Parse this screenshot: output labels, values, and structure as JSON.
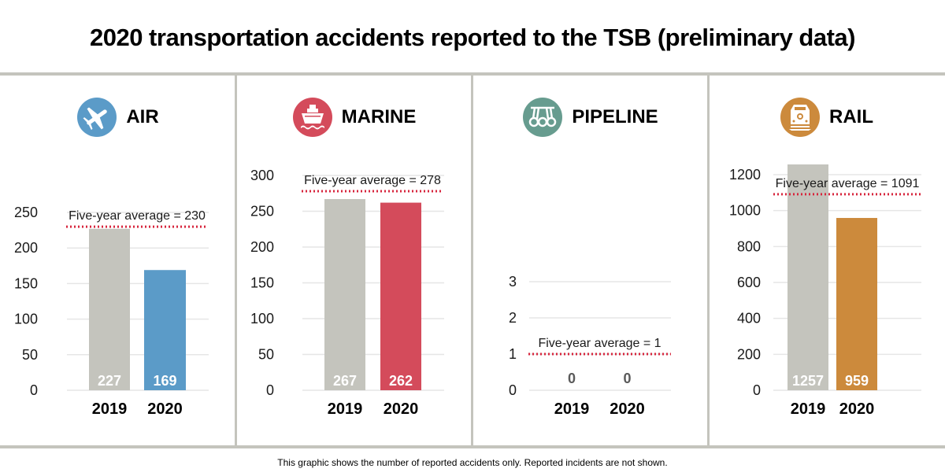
{
  "title": "2020 transportation accidents reported to the TSB (preliminary data)",
  "footnote": "This graphic shows the number of reported accidents only. Reported incidents are not shown.",
  "colors": {
    "baseline_bar": "#c4c4bd",
    "average_line": "#d7263d",
    "gridline": "#e6e6e6",
    "divider": "#c4c4bd"
  },
  "chart_data": [
    {
      "type": "bar",
      "title": "AIR",
      "icon": "airplane-icon",
      "accent": "#5b9bc8",
      "categories": [
        "2019",
        "2020"
      ],
      "values": [
        227,
        169
      ],
      "value_labels": [
        "227",
        "169"
      ],
      "ylim": [
        0,
        250
      ],
      "yticks": [
        0,
        50,
        100,
        150,
        200,
        250
      ],
      "reference_line": {
        "label": "Five-year average = 230",
        "value": 230
      },
      "grid": true
    },
    {
      "type": "bar",
      "title": "MARINE",
      "icon": "ship-icon",
      "accent": "#d44b5b",
      "categories": [
        "2019",
        "2020"
      ],
      "values": [
        267,
        262
      ],
      "value_labels": [
        "267",
        "262"
      ],
      "ylim": [
        0,
        300
      ],
      "yticks": [
        0,
        50,
        100,
        150,
        200,
        250,
        300
      ],
      "reference_line": {
        "label": "Five-year average = 278",
        "value": 278
      },
      "grid": true
    },
    {
      "type": "bar",
      "title": "PIPELINE",
      "icon": "pipeline-icon",
      "accent": "#679c8f",
      "categories": [
        "2019",
        "2020"
      ],
      "values": [
        0,
        0
      ],
      "value_labels": [
        "0",
        "0"
      ],
      "ylim": [
        0,
        3
      ],
      "yticks": [
        0,
        1,
        2,
        3
      ],
      "reference_line": {
        "label": "Five-year average = 1",
        "value": 1
      },
      "grid": true
    },
    {
      "type": "bar",
      "title": "RAIL",
      "icon": "train-icon",
      "accent": "#cc8a3c",
      "categories": [
        "2019",
        "2020"
      ],
      "values": [
        1257,
        959
      ],
      "value_labels": [
        "1257",
        "959"
      ],
      "ylim": [
        0,
        1200
      ],
      "yticks": [
        0,
        200,
        400,
        600,
        800,
        1000,
        1200
      ],
      "reference_line": {
        "label": "Five-year average = 1091",
        "value": 1091
      },
      "grid": true
    }
  ]
}
